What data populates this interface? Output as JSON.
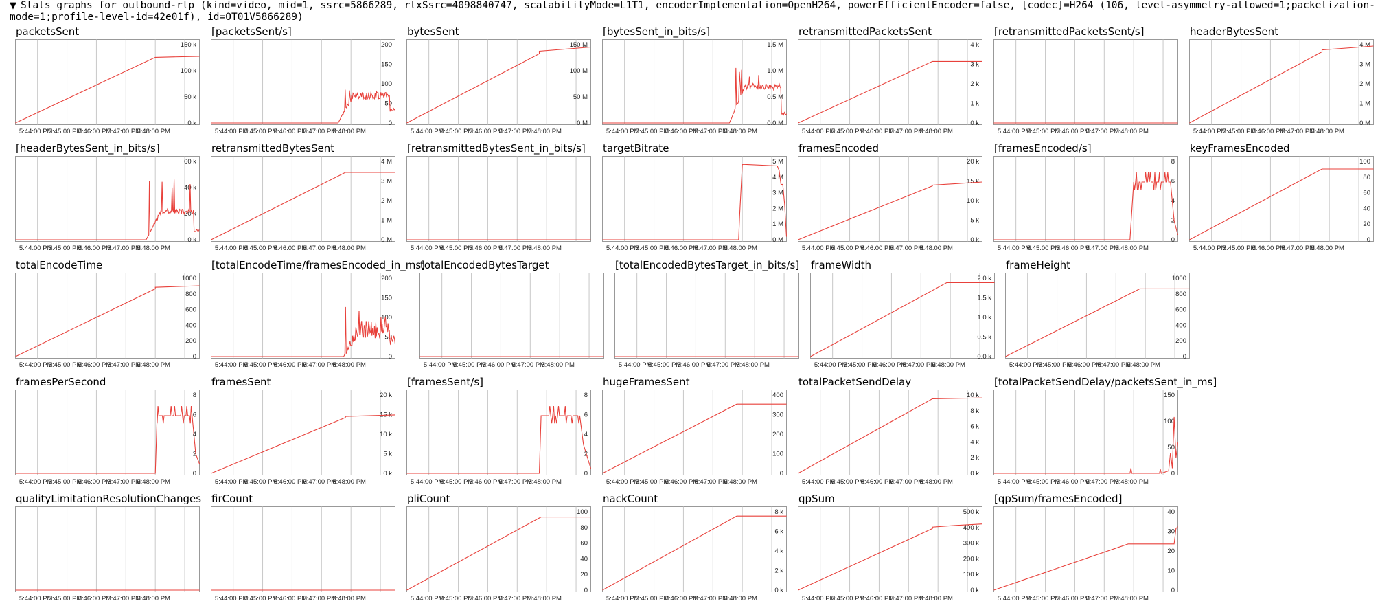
{
  "summary": {
    "toggle_icon": "triangle-down-icon",
    "text": "Stats graphs for outbound-rtp (kind=video, mid=1, ssrc=5866289, rtxSsrc=4098840747, scalabilityMode=L1T1, encoderImplementation=OpenH264, powerEfficientEncoder=false, [codec]=H264 (106, level-asymmetry-allowed=1;packetization-mode=1;profile-level-id=42e01f), id=OT01V5866289)"
  },
  "colors": {
    "line": "#e8413b",
    "grid": "#c8c8c8",
    "border": "#999999"
  },
  "x_ticks": [
    "5:44:00 PM",
    "5:45:00 PM",
    "5:46:00 PM",
    "5:47:00 PM",
    "5:48:00 PM"
  ],
  "chart_data": [
    {
      "title": "packetsSent",
      "type": "line",
      "yticks": [
        "150 k",
        "100 k",
        "50 k",
        "0 k"
      ],
      "ylim": [
        0,
        150000
      ],
      "pattern": "step",
      "x": [
        0,
        0.76,
        0.76,
        1
      ],
      "values": [
        0,
        128000,
        128000,
        130000
      ]
    },
    {
      "title": "[packetsSent/s]",
      "type": "line",
      "yticks": [
        "200",
        "150",
        "100",
        "50",
        "0"
      ],
      "ylim": [
        0,
        200
      ],
      "pattern": "noisy",
      "start": 0.69,
      "level": [
        70,
        20,
        95,
        10
      ],
      "end": 30
    },
    {
      "title": "bytesSent",
      "type": "line",
      "yticks": [
        "150 M",
        "100 M",
        "50 M",
        "0 M"
      ],
      "ylim": [
        0,
        150000000
      ],
      "pattern": "step",
      "x": [
        0,
        0.72,
        0.72,
        1
      ],
      "values": [
        0,
        135000000,
        140000000,
        148000000
      ]
    },
    {
      "title": "[bytesSent_in_bits/s]",
      "type": "line",
      "yticks": [
        "1.5 M",
        "1.0 M",
        "0.5 M",
        "0.0 M"
      ],
      "ylim": [
        0,
        1500000
      ],
      "pattern": "noisy",
      "start": 0.69,
      "level": [
        700000,
        200000,
        1100000,
        60000
      ],
      "end": 150000
    },
    {
      "title": "retransmittedPacketsSent",
      "type": "line",
      "yticks": [
        "4 k",
        "3 k",
        "2 k",
        "1 k",
        "0 k"
      ],
      "ylim": [
        0,
        4000
      ],
      "pattern": "step",
      "x": [
        0,
        0.73,
        0.73,
        1
      ],
      "values": [
        0,
        3200,
        3200,
        3200
      ]
    },
    {
      "title": "[retransmittedPacketsSent/s]",
      "type": "line",
      "yticks": [],
      "ylim": [
        0,
        1
      ],
      "pattern": "flat",
      "x": [
        0,
        1
      ],
      "values": [
        0,
        0
      ]
    },
    {
      "title": "headerBytesSent",
      "type": "line",
      "yticks": [
        "4 M",
        "3 M",
        "2 M",
        "1 M",
        "0 M"
      ],
      "ylim": [
        0,
        4000000
      ],
      "pattern": "step",
      "x": [
        0,
        0.72,
        0.72,
        1
      ],
      "values": [
        0,
        3700000,
        3800000,
        4000000
      ]
    },
    {
      "title": "[headerBytesSent_in_bits/s]",
      "type": "line",
      "yticks": [
        "60 k",
        "40 k",
        "20 k",
        "0 k"
      ],
      "ylim": [
        0,
        60000
      ],
      "pattern": "noisy",
      "start": 0.71,
      "level": [
        22000,
        8000,
        48000,
        2000
      ],
      "end": 6000
    },
    {
      "title": "retransmittedBytesSent",
      "type": "line",
      "yticks": [
        "4 M",
        "3 M",
        "2 M",
        "1 M",
        "0 M"
      ],
      "ylim": [
        0,
        4000000
      ],
      "pattern": "step",
      "x": [
        0,
        0.73,
        0.73,
        1
      ],
      "values": [
        0,
        3500000,
        3500000,
        3500000
      ]
    },
    {
      "title": "[retransmittedBytesSent_in_bits/s]",
      "type": "line",
      "yticks": [],
      "ylim": [
        0,
        1
      ],
      "pattern": "flat",
      "x": [
        0,
        1
      ],
      "values": [
        0,
        0
      ]
    },
    {
      "title": "targetBitrate",
      "type": "line",
      "yticks": [
        "5 M",
        "4 M",
        "3 M",
        "2 M",
        "1 M",
        "0 M"
      ],
      "ylim": [
        0,
        5000000
      ],
      "pattern": "step",
      "x": [
        0,
        0.74,
        0.745,
        0.76,
        0.95,
        0.96,
        0.97,
        0.98,
        0.99,
        1
      ],
      "values": [
        0,
        0,
        1500000,
        4900000,
        4800000,
        4500000,
        3600000,
        3600000,
        2300000,
        200000
      ]
    },
    {
      "title": "framesEncoded",
      "type": "line",
      "yticks": [
        "20 k",
        "15 k",
        "10 k",
        "5 k",
        "0 k"
      ],
      "ylim": [
        0,
        20000
      ],
      "pattern": "step",
      "x": [
        0,
        0.73,
        0.73,
        1
      ],
      "values": [
        0,
        14000,
        14200,
        15000
      ]
    },
    {
      "title": "[framesEncoded/s]",
      "type": "line",
      "yticks": [
        "8",
        "6",
        "4",
        "2",
        "0"
      ],
      "ylim": [
        0,
        8
      ],
      "pattern": "plateau",
      "x": [
        0,
        0.74,
        0.76,
        0.96,
        0.98,
        1
      ],
      "values": [
        0,
        0,
        6,
        6,
        2,
        0.5
      ]
    },
    {
      "title": "keyFramesEncoded",
      "type": "line",
      "yticks": [
        "100",
        "80",
        "60",
        "40",
        "20",
        "0"
      ],
      "ylim": [
        0,
        100
      ],
      "pattern": "step",
      "x": [
        0,
        0.72,
        0.72,
        1
      ],
      "values": [
        0,
        92,
        92,
        92
      ]
    },
    {
      "title": "totalEncodeTime",
      "type": "line",
      "yticks": [
        "1000",
        "800",
        "600",
        "400",
        "200",
        "0"
      ],
      "ylim": [
        0,
        1000
      ],
      "pattern": "step",
      "x": [
        0,
        0.76,
        0.76,
        1
      ],
      "values": [
        0,
        880,
        900,
        920
      ]
    },
    {
      "title": "[totalEncodeTime/framesEncoded_in_ms]",
      "type": "line",
      "yticks": [
        "200",
        "150",
        "100",
        "50",
        "0"
      ],
      "ylim": [
        0,
        200
      ],
      "pattern": "noisy",
      "start": 0.72,
      "level": [
        70,
        20,
        130,
        25
      ],
      "end": 30
    },
    {
      "title": "totalEncodedBytesTarget",
      "type": "line",
      "yticks": [],
      "ylim": [
        0,
        1
      ],
      "pattern": "flat",
      "x": [
        0,
        1
      ],
      "values": [
        0,
        0
      ]
    },
    {
      "title": "[totalEncodedBytesTarget_in_bits/s]",
      "type": "line",
      "yticks": [],
      "ylim": [
        0,
        1
      ],
      "pattern": "flat",
      "x": [
        0,
        1
      ],
      "values": [
        0,
        0
      ]
    },
    {
      "title": "frameWidth",
      "type": "line",
      "yticks": [
        "2.0 k",
        "1.5 k",
        "1.0 k",
        "0.5 k",
        "0.0 k"
      ],
      "ylim": [
        0,
        2000
      ],
      "pattern": "step",
      "x": [
        0,
        0.74,
        0.74,
        1
      ],
      "values": [
        0,
        1920,
        1920,
        1920
      ]
    },
    {
      "title": "frameHeight",
      "type": "line",
      "yticks": [
        "1000",
        "800",
        "600",
        "400",
        "200",
        "0"
      ],
      "ylim": [
        0,
        1000
      ],
      "pattern": "step",
      "x": [
        0,
        0.73,
        0.73,
        1
      ],
      "values": [
        0,
        880,
        880,
        880
      ]
    },
    {
      "title": "framesPerSecond",
      "type": "line",
      "yticks": [
        "8",
        "6",
        "4",
        "2",
        "0"
      ],
      "ylim": [
        0,
        8
      ],
      "pattern": "plateau",
      "x": [
        0,
        0.76,
        0.77,
        0.96,
        0.98,
        1
      ],
      "values": [
        0,
        0,
        6,
        6,
        2,
        1
      ]
    },
    {
      "title": "framesSent",
      "type": "line",
      "yticks": [
        "20 k",
        "15 k",
        "10 k",
        "5 k",
        "0 k"
      ],
      "ylim": [
        0,
        20000
      ],
      "pattern": "step",
      "x": [
        0,
        0.73,
        0.73,
        1
      ],
      "values": [
        0,
        14500,
        14800,
        15200
      ]
    },
    {
      "title": "[framesSent/s]",
      "type": "line",
      "yticks": [
        "8",
        "6",
        "4",
        "2",
        "0"
      ],
      "ylim": [
        0,
        8
      ],
      "pattern": "plateau",
      "x": [
        0,
        0.72,
        0.73,
        0.94,
        0.96,
        1
      ],
      "values": [
        0,
        0,
        6,
        6,
        3,
        0.5
      ]
    },
    {
      "title": "hugeFramesSent",
      "type": "line",
      "yticks": [
        "400",
        "300",
        "200",
        "100",
        "0"
      ],
      "ylim": [
        0,
        400
      ],
      "pattern": "step",
      "x": [
        0,
        0.73,
        0.73,
        1
      ],
      "values": [
        0,
        360,
        360,
        360
      ]
    },
    {
      "title": "totalPacketSendDelay",
      "type": "line",
      "yticks": [
        "10 k",
        "8 k",
        "6 k",
        "4 k",
        "2 k",
        "0 k"
      ],
      "ylim": [
        0,
        10000
      ],
      "pattern": "step",
      "x": [
        0,
        0.73,
        0.73,
        1
      ],
      "values": [
        0,
        9700,
        9700,
        9800
      ]
    },
    {
      "title": "[totalPacketSendDelay/packetsSent_in_ms]",
      "type": "line",
      "yticks": [
        "150",
        "100",
        "50",
        "0"
      ],
      "ylim": [
        0,
        150
      ],
      "pattern": "sparse",
      "x": [
        0,
        0.74,
        0.745,
        0.75,
        0.9,
        0.905,
        0.91,
        0.95,
        0.96,
        0.97,
        0.98,
        0.99,
        1
      ],
      "values": [
        0,
        0,
        10,
        0,
        0,
        8,
        0,
        5,
        40,
        10,
        110,
        30,
        60
      ]
    },
    {
      "title": "qualityLimitationResolutionChanges",
      "type": "line",
      "yticks": [],
      "ylim": [
        0,
        1
      ],
      "pattern": "flat",
      "x": [
        0,
        1
      ],
      "values": [
        0,
        0
      ]
    },
    {
      "title": "firCount",
      "type": "line",
      "yticks": [],
      "ylim": [
        0,
        1
      ],
      "pattern": "flat",
      "x": [
        0,
        1
      ],
      "values": [
        0,
        0
      ]
    },
    {
      "title": "pliCount",
      "type": "line",
      "yticks": [
        "100",
        "80",
        "60",
        "40",
        "20",
        "0"
      ],
      "ylim": [
        0,
        100
      ],
      "pattern": "step",
      "x": [
        0,
        0.73,
        0.73,
        1
      ],
      "values": [
        0,
        95,
        95,
        95
      ]
    },
    {
      "title": "nackCount",
      "type": "line",
      "yticks": [
        "8 k",
        "6 k",
        "4 k",
        "2 k",
        "0 k"
      ],
      "ylim": [
        0,
        8000
      ],
      "pattern": "step",
      "x": [
        0,
        0.73,
        0.73,
        1
      ],
      "values": [
        0,
        7700,
        7700,
        7700
      ]
    },
    {
      "title": "qpSum",
      "type": "line",
      "yticks": [
        "500 k",
        "400 k",
        "300 k",
        "200 k",
        "100 k",
        "0 k"
      ],
      "ylim": [
        0,
        500000
      ],
      "pattern": "step",
      "x": [
        0,
        0.73,
        0.73,
        0.85,
        1
      ],
      "values": [
        0,
        400000,
        410000,
        420000,
        430000
      ]
    },
    {
      "title": "[qpSum/framesEncoded]",
      "type": "line",
      "yticks": [
        "40",
        "30",
        "20",
        "10",
        "0"
      ],
      "ylim": [
        0,
        40
      ],
      "pattern": "step",
      "x": [
        0,
        0.73,
        0.73,
        0.98,
        0.99,
        1
      ],
      "values": [
        0,
        24,
        24,
        24,
        32,
        33
      ]
    }
  ]
}
